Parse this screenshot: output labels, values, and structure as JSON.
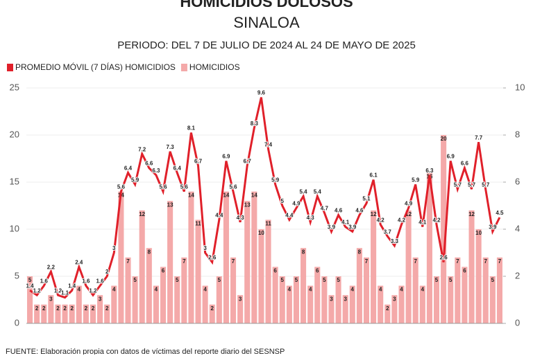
{
  "chart_data": {
    "type": "bar_line",
    "title": "HOMICIDIOS DOLOSOS",
    "subtitle": "SINALOA",
    "period": "PERIODO: DEL 7 DE JULIO DE 2024 AL 24 DE MAYO DE 2025",
    "source": "FUENTE: Elaboración propia con datos de víctimas del reporte diario del SESNSP",
    "categories": [
      null,
      null,
      null,
      null,
      null,
      null,
      null,
      null,
      null,
      null,
      null,
      null,
      null,
      null,
      null,
      null,
      null,
      null,
      null,
      null,
      null,
      null,
      null,
      null,
      null,
      null,
      null,
      null,
      null,
      null,
      null,
      null,
      null,
      null,
      null,
      null,
      null,
      null,
      null,
      null,
      null,
      null,
      null,
      null,
      null,
      null,
      null,
      null,
      null,
      null,
      null,
      null,
      null,
      null,
      null,
      null,
      null,
      null,
      null,
      null,
      null,
      null,
      null,
      null,
      null,
      null,
      null,
      null
    ],
    "series": [
      {
        "name": "PROMEDIO MÓVIL (7 DÍAS) HOMICIDIOS",
        "color": "#e0202a",
        "axis": "y2",
        "values": [
          1.4,
          1.2,
          1.6,
          2.2,
          1.2,
          1.1,
          1.4,
          2.4,
          1.6,
          1.2,
          1.6,
          2,
          3,
          5.6,
          6.4,
          5.9,
          7.2,
          6.6,
          6.3,
          5.6,
          7.3,
          6.4,
          5.6,
          8.1,
          6.7,
          3,
          2.6,
          4.4,
          6.9,
          5.6,
          4.3,
          6.7,
          8.3,
          9.6,
          7.4,
          5.9,
          5,
          4.4,
          4.9,
          5.4,
          4.3,
          5.4,
          4.7,
          3.9,
          4.6,
          4.1,
          3.9,
          4.6,
          5.1,
          6.1,
          4.2,
          3.7,
          3.3,
          4.2,
          4.9,
          5.9,
          4.1,
          6.3,
          4.2,
          2.6,
          6.9,
          5.7,
          6.6,
          5.7,
          7.7,
          5.7,
          3.9,
          4.5
        ]
      },
      {
        "name": "HOMICIDIOS",
        "color": "#f4a9a9",
        "values": [
          5,
          2,
          2,
          3,
          2,
          2,
          2,
          4,
          2,
          2,
          3,
          2,
          4,
          14,
          7,
          5,
          12,
          8,
          4,
          6,
          13,
          5,
          7,
          14,
          11,
          4,
          2,
          5,
          14,
          7,
          3,
          13,
          14,
          10,
          11,
          6,
          5,
          4,
          5,
          8,
          4,
          6,
          5,
          3,
          5,
          3,
          4,
          8,
          7,
          12,
          4,
          2,
          3,
          4,
          12,
          7,
          4,
          16,
          5,
          20,
          5,
          7,
          6,
          12,
          10,
          7,
          5,
          7
        ]
      }
    ],
    "ylim": [
      0,
      25
    ],
    "yticks": [
      0,
      5,
      10,
      15,
      20,
      25
    ],
    "y2lim": [
      0,
      10
    ],
    "y2ticks": [
      0,
      2,
      4,
      6,
      8,
      10
    ]
  }
}
